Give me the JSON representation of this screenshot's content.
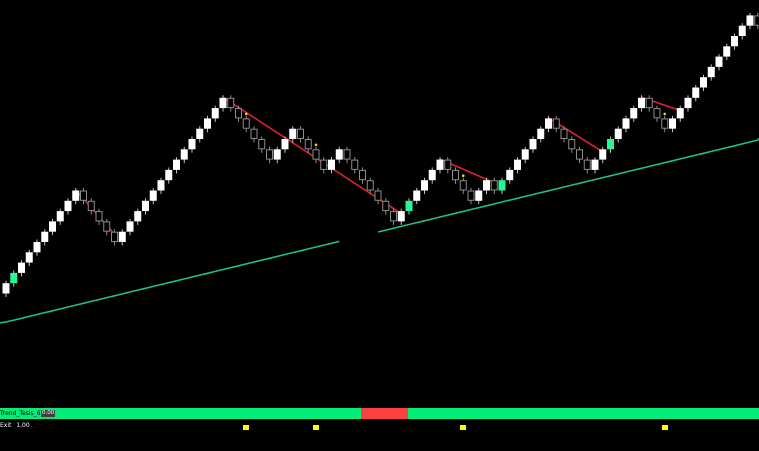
{
  "colors": {
    "background": "#000000",
    "bull_brick": "#ffffff",
    "bull_brick_outline": "#ffffff",
    "bear_brick_fill": "#000000",
    "bear_brick_outline": "#8c8c8c",
    "signal_brick": "#2af598",
    "moving_average": "#1fbf86",
    "resistance_line": "#e0202e",
    "entry_dot": "#ffd700",
    "trend_positive": "#00ee77",
    "trend_negative": "#ff4040",
    "exit_marker": "#ffff00"
  },
  "indicators": {
    "trend_label": "Trend_Tesis_6",
    "trend_value": "0.00",
    "exit_label": "Exit",
    "exit_value": "1,00"
  },
  "chart_data": {
    "type": "renko",
    "brick_size": 1,
    "bricks": [
      {
        "dir": "up",
        "signal": false
      },
      {
        "dir": "up",
        "signal": true
      },
      {
        "dir": "up",
        "signal": false
      },
      {
        "dir": "up",
        "signal": false
      },
      {
        "dir": "up",
        "signal": false
      },
      {
        "dir": "up",
        "signal": false
      },
      {
        "dir": "up",
        "signal": false
      },
      {
        "dir": "up",
        "signal": false
      },
      {
        "dir": "up",
        "signal": false
      },
      {
        "dir": "up",
        "signal": false
      },
      {
        "dir": "down",
        "signal": false
      },
      {
        "dir": "down",
        "signal": false
      },
      {
        "dir": "down",
        "signal": false
      },
      {
        "dir": "down",
        "signal": false
      },
      {
        "dir": "down",
        "signal": false
      },
      {
        "dir": "up",
        "signal": false
      },
      {
        "dir": "up",
        "signal": false
      },
      {
        "dir": "up",
        "signal": false
      },
      {
        "dir": "up",
        "signal": false
      },
      {
        "dir": "up",
        "signal": false
      },
      {
        "dir": "up",
        "signal": false
      },
      {
        "dir": "up",
        "signal": false
      },
      {
        "dir": "up",
        "signal": false
      },
      {
        "dir": "up",
        "signal": false
      },
      {
        "dir": "up",
        "signal": false
      },
      {
        "dir": "up",
        "signal": false
      },
      {
        "dir": "up",
        "signal": false
      },
      {
        "dir": "up",
        "signal": false
      },
      {
        "dir": "up",
        "signal": false
      },
      {
        "dir": "down",
        "signal": false
      },
      {
        "dir": "down",
        "signal": false
      },
      {
        "dir": "down",
        "signal": false
      },
      {
        "dir": "down",
        "signal": false
      },
      {
        "dir": "down",
        "signal": false
      },
      {
        "dir": "down",
        "signal": false
      },
      {
        "dir": "up",
        "signal": false
      },
      {
        "dir": "up",
        "signal": false
      },
      {
        "dir": "up",
        "signal": false
      },
      {
        "dir": "down",
        "signal": false
      },
      {
        "dir": "down",
        "signal": false
      },
      {
        "dir": "down",
        "signal": false
      },
      {
        "dir": "down",
        "signal": false
      },
      {
        "dir": "up",
        "signal": false
      },
      {
        "dir": "up",
        "signal": false
      },
      {
        "dir": "down",
        "signal": false
      },
      {
        "dir": "down",
        "signal": false
      },
      {
        "dir": "down",
        "signal": false
      },
      {
        "dir": "down",
        "signal": false
      },
      {
        "dir": "down",
        "signal": false
      },
      {
        "dir": "down",
        "signal": false
      },
      {
        "dir": "down",
        "signal": false
      },
      {
        "dir": "up",
        "signal": false
      },
      {
        "dir": "up",
        "signal": true
      },
      {
        "dir": "up",
        "signal": false
      },
      {
        "dir": "up",
        "signal": false
      },
      {
        "dir": "up",
        "signal": false
      },
      {
        "dir": "up",
        "signal": false
      },
      {
        "dir": "down",
        "signal": false
      },
      {
        "dir": "down",
        "signal": false
      },
      {
        "dir": "down",
        "signal": false
      },
      {
        "dir": "down",
        "signal": false
      },
      {
        "dir": "up",
        "signal": false
      },
      {
        "dir": "up",
        "signal": false
      },
      {
        "dir": "down",
        "signal": false
      },
      {
        "dir": "up",
        "signal": true
      },
      {
        "dir": "up",
        "signal": false
      },
      {
        "dir": "up",
        "signal": false
      },
      {
        "dir": "up",
        "signal": false
      },
      {
        "dir": "up",
        "signal": false
      },
      {
        "dir": "up",
        "signal": false
      },
      {
        "dir": "up",
        "signal": false
      },
      {
        "dir": "down",
        "signal": false
      },
      {
        "dir": "down",
        "signal": false
      },
      {
        "dir": "down",
        "signal": false
      },
      {
        "dir": "down",
        "signal": false
      },
      {
        "dir": "down",
        "signal": false
      },
      {
        "dir": "up",
        "signal": false
      },
      {
        "dir": "up",
        "signal": false
      },
      {
        "dir": "up",
        "signal": true
      },
      {
        "dir": "up",
        "signal": false
      },
      {
        "dir": "up",
        "signal": false
      },
      {
        "dir": "up",
        "signal": false
      },
      {
        "dir": "up",
        "signal": false
      },
      {
        "dir": "down",
        "signal": false
      },
      {
        "dir": "down",
        "signal": false
      },
      {
        "dir": "down",
        "signal": false
      },
      {
        "dir": "up",
        "signal": false
      },
      {
        "dir": "up",
        "signal": false
      },
      {
        "dir": "up",
        "signal": false
      },
      {
        "dir": "up",
        "signal": false
      },
      {
        "dir": "up",
        "signal": false
      },
      {
        "dir": "up",
        "signal": false
      },
      {
        "dir": "up",
        "signal": false
      },
      {
        "dir": "up",
        "signal": false
      },
      {
        "dir": "up",
        "signal": false
      },
      {
        "dir": "up",
        "signal": false
      },
      {
        "dir": "up",
        "signal": false
      },
      {
        "dir": "down",
        "signal": false
      }
    ],
    "resistance_lines": [
      {
        "from_brick": 9,
        "to_brick": 14
      },
      {
        "from_brick": 28,
        "to_brick": 51
      },
      {
        "from_brick": 56,
        "to_brick": 63
      },
      {
        "from_brick": 70,
        "to_brick": 77
      },
      {
        "from_brick": 82,
        "to_brick": 87
      }
    ],
    "entry_dots": [
      31,
      40,
      59,
      85
    ],
    "moving_average_segments": [
      {
        "from_brick": 0,
        "to_brick": 43
      },
      {
        "from_brick": 48,
        "to_brick": 97
      }
    ],
    "trend_strip": [
      {
        "state": "positive",
        "from": 0.0,
        "to": 0.476
      },
      {
        "state": "negative",
        "from": 0.476,
        "to": 0.538
      },
      {
        "state": "positive",
        "from": 0.538,
        "to": 1.0
      }
    ],
    "exit_signals": [
      31,
      40,
      59,
      85
    ],
    "grid": false
  }
}
